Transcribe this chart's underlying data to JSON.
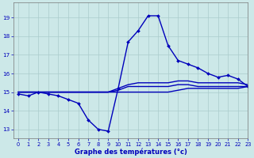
{
  "xlabel": "Graphe des températures (°c)",
  "background_color": "#cce8e8",
  "grid_color": "#aacccc",
  "line_color": "#0000bb",
  "xlim": [
    -0.5,
    23
  ],
  "ylim": [
    12.5,
    19.8
  ],
  "yticks": [
    13,
    14,
    15,
    16,
    17,
    18,
    19
  ],
  "xticks": [
    0,
    1,
    2,
    3,
    4,
    5,
    6,
    7,
    8,
    9,
    10,
    11,
    12,
    13,
    14,
    15,
    16,
    17,
    18,
    19,
    20,
    21,
    22,
    23
  ],
  "lines": [
    {
      "x": [
        0,
        1,
        2,
        3,
        4,
        5,
        6,
        7,
        8,
        9,
        10,
        11,
        12,
        13,
        14,
        15,
        16,
        17,
        18,
        19,
        20,
        21,
        22,
        23
      ],
      "y": [
        14.9,
        14.8,
        15.0,
        14.9,
        14.8,
        14.6,
        14.4,
        13.5,
        13.0,
        12.9,
        15.2,
        17.7,
        18.3,
        19.1,
        19.1,
        17.5,
        16.7,
        16.5,
        16.3,
        16.0,
        15.8,
        15.9,
        15.7,
        15.3
      ],
      "marker": true,
      "lw": 1.0
    },
    {
      "x": [
        0,
        1,
        2,
        3,
        4,
        5,
        6,
        7,
        8,
        9,
        10,
        11,
        12,
        13,
        14,
        15,
        16,
        17,
        18,
        19,
        20,
        21,
        22,
        23
      ],
      "y": [
        15.0,
        15.0,
        15.0,
        15.0,
        15.0,
        15.0,
        15.0,
        15.0,
        15.0,
        15.0,
        15.2,
        15.4,
        15.5,
        15.5,
        15.5,
        15.5,
        15.6,
        15.6,
        15.5,
        15.5,
        15.5,
        15.5,
        15.5,
        15.4
      ],
      "marker": false,
      "lw": 1.0
    },
    {
      "x": [
        0,
        1,
        2,
        3,
        4,
        5,
        6,
        7,
        8,
        9,
        10,
        11,
        12,
        13,
        14,
        15,
        16,
        17,
        18,
        19,
        20,
        21,
        22,
        23
      ],
      "y": [
        15.0,
        15.0,
        15.0,
        15.0,
        15.0,
        15.0,
        15.0,
        15.0,
        15.0,
        15.0,
        15.1,
        15.3,
        15.3,
        15.3,
        15.3,
        15.3,
        15.4,
        15.4,
        15.3,
        15.3,
        15.3,
        15.3,
        15.3,
        15.3
      ],
      "marker": false,
      "lw": 1.0
    },
    {
      "x": [
        0,
        1,
        2,
        3,
        4,
        5,
        6,
        7,
        8,
        9,
        10,
        11,
        12,
        13,
        14,
        15,
        16,
        17,
        18,
        19,
        20,
        21,
        22,
        23
      ],
      "y": [
        15.0,
        15.0,
        15.0,
        15.0,
        15.0,
        15.0,
        15.0,
        15.0,
        15.0,
        15.0,
        15.0,
        15.0,
        15.0,
        15.0,
        15.0,
        15.0,
        15.1,
        15.2,
        15.2,
        15.2,
        15.2,
        15.2,
        15.2,
        15.3
      ],
      "marker": false,
      "lw": 1.0
    }
  ]
}
